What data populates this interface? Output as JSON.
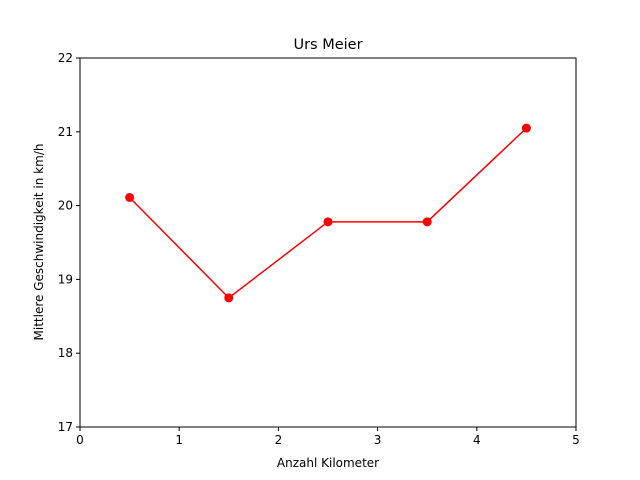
{
  "chart_data": {
    "type": "line",
    "title": "Urs Meier",
    "xlabel": "Anzahl Kilometer",
    "ylabel": "Mittlere Geschwindigkeit in km/h",
    "xlim": [
      0,
      5
    ],
    "ylim": [
      17,
      22
    ],
    "xticks": [
      "0",
      "1",
      "2",
      "3",
      "4",
      "5"
    ],
    "yticks": [
      "17",
      "18",
      "19",
      "20",
      "21",
      "22"
    ],
    "grid": false,
    "legend": "none",
    "series": [
      {
        "color": "#ff0000",
        "marker": "circle",
        "x": [
          0.5,
          1.5,
          2.5,
          3.5,
          4.5
        ],
        "y": [
          20.11,
          18.75,
          19.78,
          19.78,
          21.05
        ]
      }
    ]
  }
}
